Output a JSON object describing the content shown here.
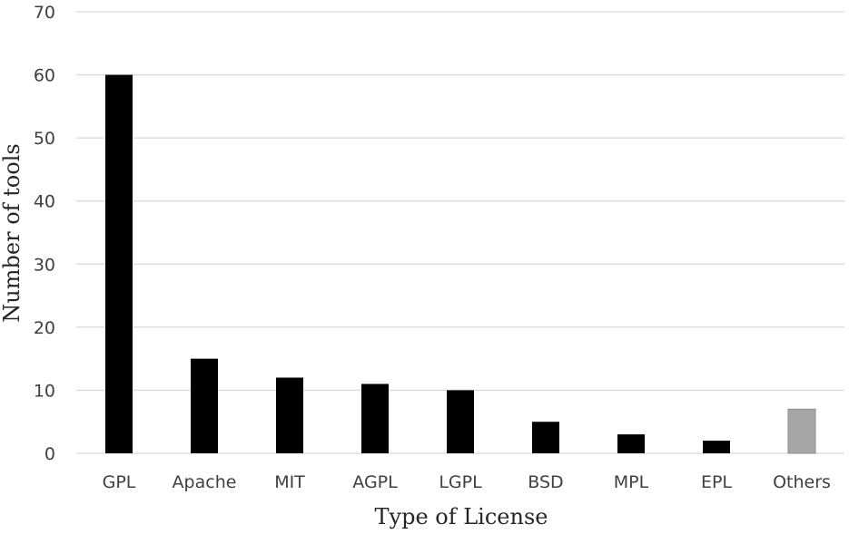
{
  "chart_data": {
    "type": "bar",
    "title": "",
    "xlabel": "Type of License",
    "ylabel": "Number of tools",
    "categories": [
      "GPL",
      "Apache",
      "MIT",
      "AGPL",
      "LGPL",
      "BSD",
      "MPL",
      "EPL",
      "Others"
    ],
    "values": [
      60,
      15,
      12,
      11,
      10,
      5,
      3,
      2,
      7
    ],
    "colors": [
      "#000000",
      "#000000",
      "#000000",
      "#000000",
      "#000000",
      "#000000",
      "#000000",
      "#000000",
      "#a6a6a6"
    ],
    "ylim": [
      0,
      70
    ],
    "yticks": [
      "0",
      "10",
      "20",
      "30",
      "40",
      "50",
      "60",
      "70"
    ],
    "grid": true,
    "legend": "none"
  }
}
